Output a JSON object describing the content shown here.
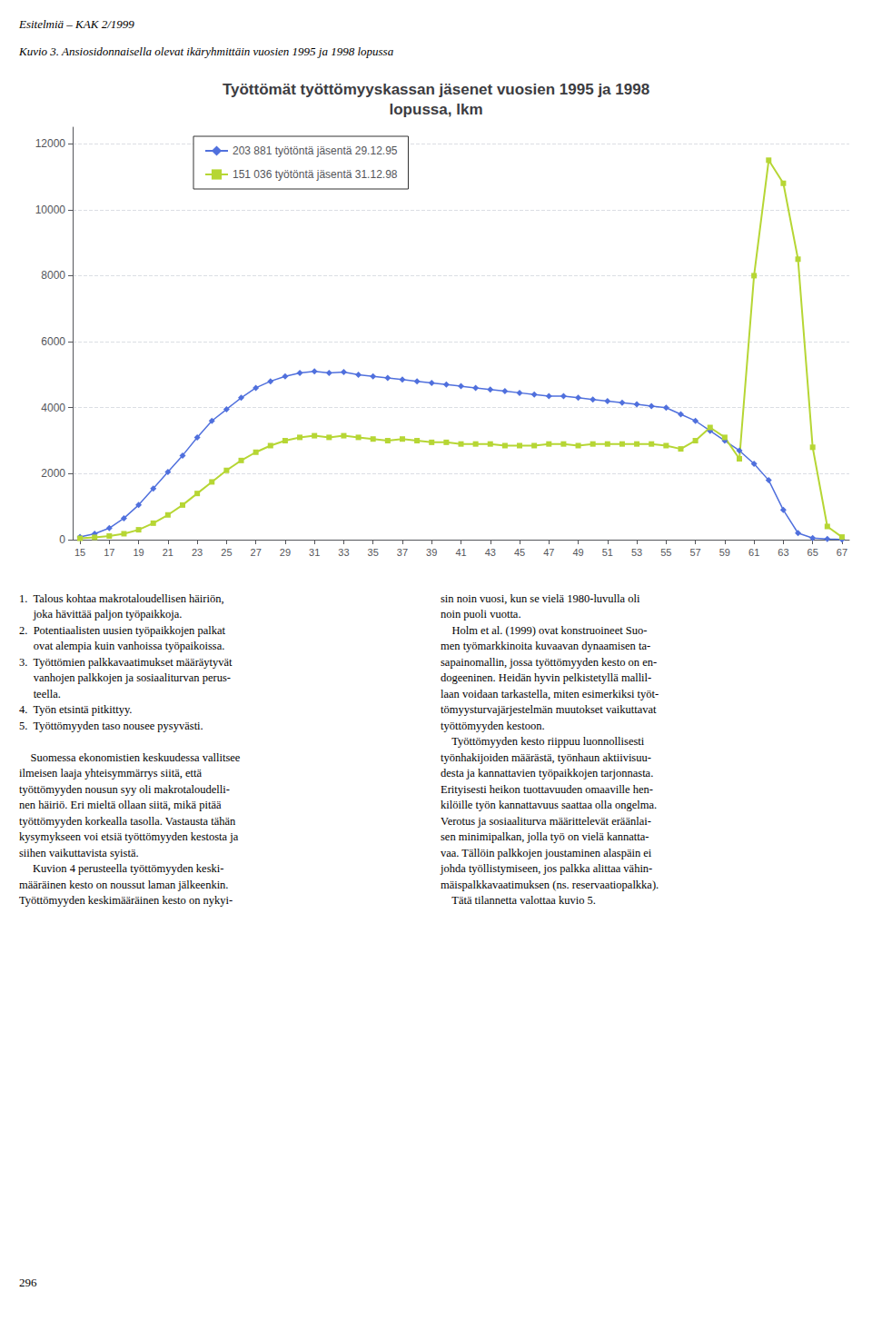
{
  "chart_data": {
    "type": "line",
    "title": "Työttömät työttömyyskassan jäsenet vuosien 1995 ja 1998\nlopussa, lkm",
    "annotations": [
      "Esitelmiä – KAK 2/1999",
      "Kuvio 3. Ansiosidonnaisella olevat ikäryhmittäin vuosien 1995 ja 1998 lopussa",
      "1.  Talous kohtaa makrotaloudellisen häiriön,\n     joka hävittää paljon työpaikkoja.\n2.  Potentiaalisten uusien työpaikkojen palkat\n     ovat alempia kuin vanhoissa työpaikoissa.\n3.  Työttömien palkkavaatimukset määräytyvät\n     vanhojen palkkojen ja sosiaaliturvan perus-\n     teella.\n4.  Työn etsintä pitkittyy.\n5.  Työttömyyden taso nousee pysyvästi.\n\n    Suomessa ekonomistien keskuudessa vallitsee\nilmeisen laaja yhteisymmärrys siitä, että\ntyöttömyyden nousun syy oli makrotaloudelli-\nnen häiriö. Eri mieltä ollaan siitä, mikä pitää\ntyöttömyyden korkealla tasolla. Vastausta tähän\nkysymykseen voi etsiä työttömyyden kestosta ja\nsiihen vaikuttavista syistä.\n     Kuvion 4 perusteella työttömyyden keski-\nmääräinen kesto on noussut laman jälkeenkin.\nTyöttömyyden keskimääräinen kesto on nykyi-",
      "sin noin vuosi, kun se vielä 1980-luvulla oli\nnoin puoli vuotta.\n    Holm et al. (1999) ovat konstruoineet Suo-\nmen työmarkkinoita kuvaavan dynaamisen ta-\nsapainomallin, jossa työttömyyden kesto on en-\ndogeeninen. Heidän hyvin pelkistetyllä mallil-\nlaan voidaan tarkastella, miten esimerkiksi työt-\ntömyysturvajärjestelmän muutokset vaikuttavat\ntyöttömyyden kestoon.\n    Työttömyyden kesto riippuu luonnollisesti\ntyönhakijoiden määrästä, työnhaun aktiivisuu-\ndesta ja kannattavien työpaikkojen tarjonnasta.\nErityisesti heikon tuottavuuden omaaville hen-\nkilöille työn kannattavuus saattaa olla ongelma.\nVerotus ja sosiaaliturva määrittelevät eräänlai-\nsen minimipalkan, jolla työ on vielä kannatta-\nvaa. Tällöin palkkojen joustaminen alaspäin ei\njohda työllistymiseen, jos palkka alittaa vähin-\nmäispalkkavaatimuksen (ns. reservaatiopalkka).\n    Tätä tilannetta valottaa kuvio 5.",
      "296"
    ],
    "x": [
      15,
      16,
      17,
      18,
      19,
      20,
      21,
      22,
      23,
      24,
      25,
      26,
      27,
      28,
      29,
      30,
      31,
      32,
      33,
      34,
      35,
      36,
      37,
      38,
      39,
      40,
      41,
      42,
      43,
      44,
      45,
      46,
      47,
      48,
      49,
      50,
      51,
      52,
      53,
      54,
      55,
      56,
      57,
      58,
      59,
      60,
      61,
      62,
      63,
      64,
      65,
      66,
      67
    ],
    "series": [
      {
        "name": "203 881 työtöntä jäsentä 29.12.95",
        "marker": "diamond",
        "values": [
          80,
          180,
          350,
          650,
          1050,
          1550,
          2050,
          2550,
          3100,
          3600,
          3950,
          4300,
          4600,
          4800,
          4950,
          5050,
          5100,
          5050,
          5080,
          5000,
          4950,
          4900,
          4850,
          4800,
          4750,
          4700,
          4650,
          4600,
          4550,
          4500,
          4450,
          4400,
          4350,
          4350,
          4300,
          4250,
          4200,
          4150,
          4100,
          4050,
          4000,
          3800,
          3600,
          3300,
          3000,
          2700,
          2300,
          1800,
          900,
          200,
          50,
          20,
          5
        ]
      },
      {
        "name": "151 036 työtöntä jäsentä 31.12.98",
        "marker": "square",
        "values": [
          40,
          70,
          110,
          180,
          300,
          500,
          750,
          1050,
          1400,
          1750,
          2100,
          2400,
          2650,
          2850,
          3000,
          3100,
          3150,
          3100,
          3150,
          3100,
          3050,
          3000,
          3050,
          3000,
          2950,
          2950,
          2900,
          2900,
          2900,
          2850,
          2850,
          2850,
          2900,
          2900,
          2850,
          2900,
          2900,
          2900,
          2900,
          2900,
          2850,
          2750,
          3000,
          3400,
          3100,
          2450,
          8000,
          11500,
          10800,
          8500,
          2800,
          400,
          80
        ]
      }
    ],
    "xlim": [
      14.5,
      67.5
    ],
    "xticks": [
      15,
      17,
      19,
      21,
      23,
      25,
      27,
      29,
      31,
      33,
      35,
      37,
      39,
      41,
      43,
      45,
      47,
      49,
      51,
      53,
      55,
      57,
      59,
      61,
      63,
      65,
      67
    ],
    "ylim": [
      0,
      12500
    ],
    "yticks": [
      0,
      2000,
      4000,
      6000,
      8000,
      10000,
      12000
    ],
    "grid": true,
    "legend": "upper left"
  }
}
